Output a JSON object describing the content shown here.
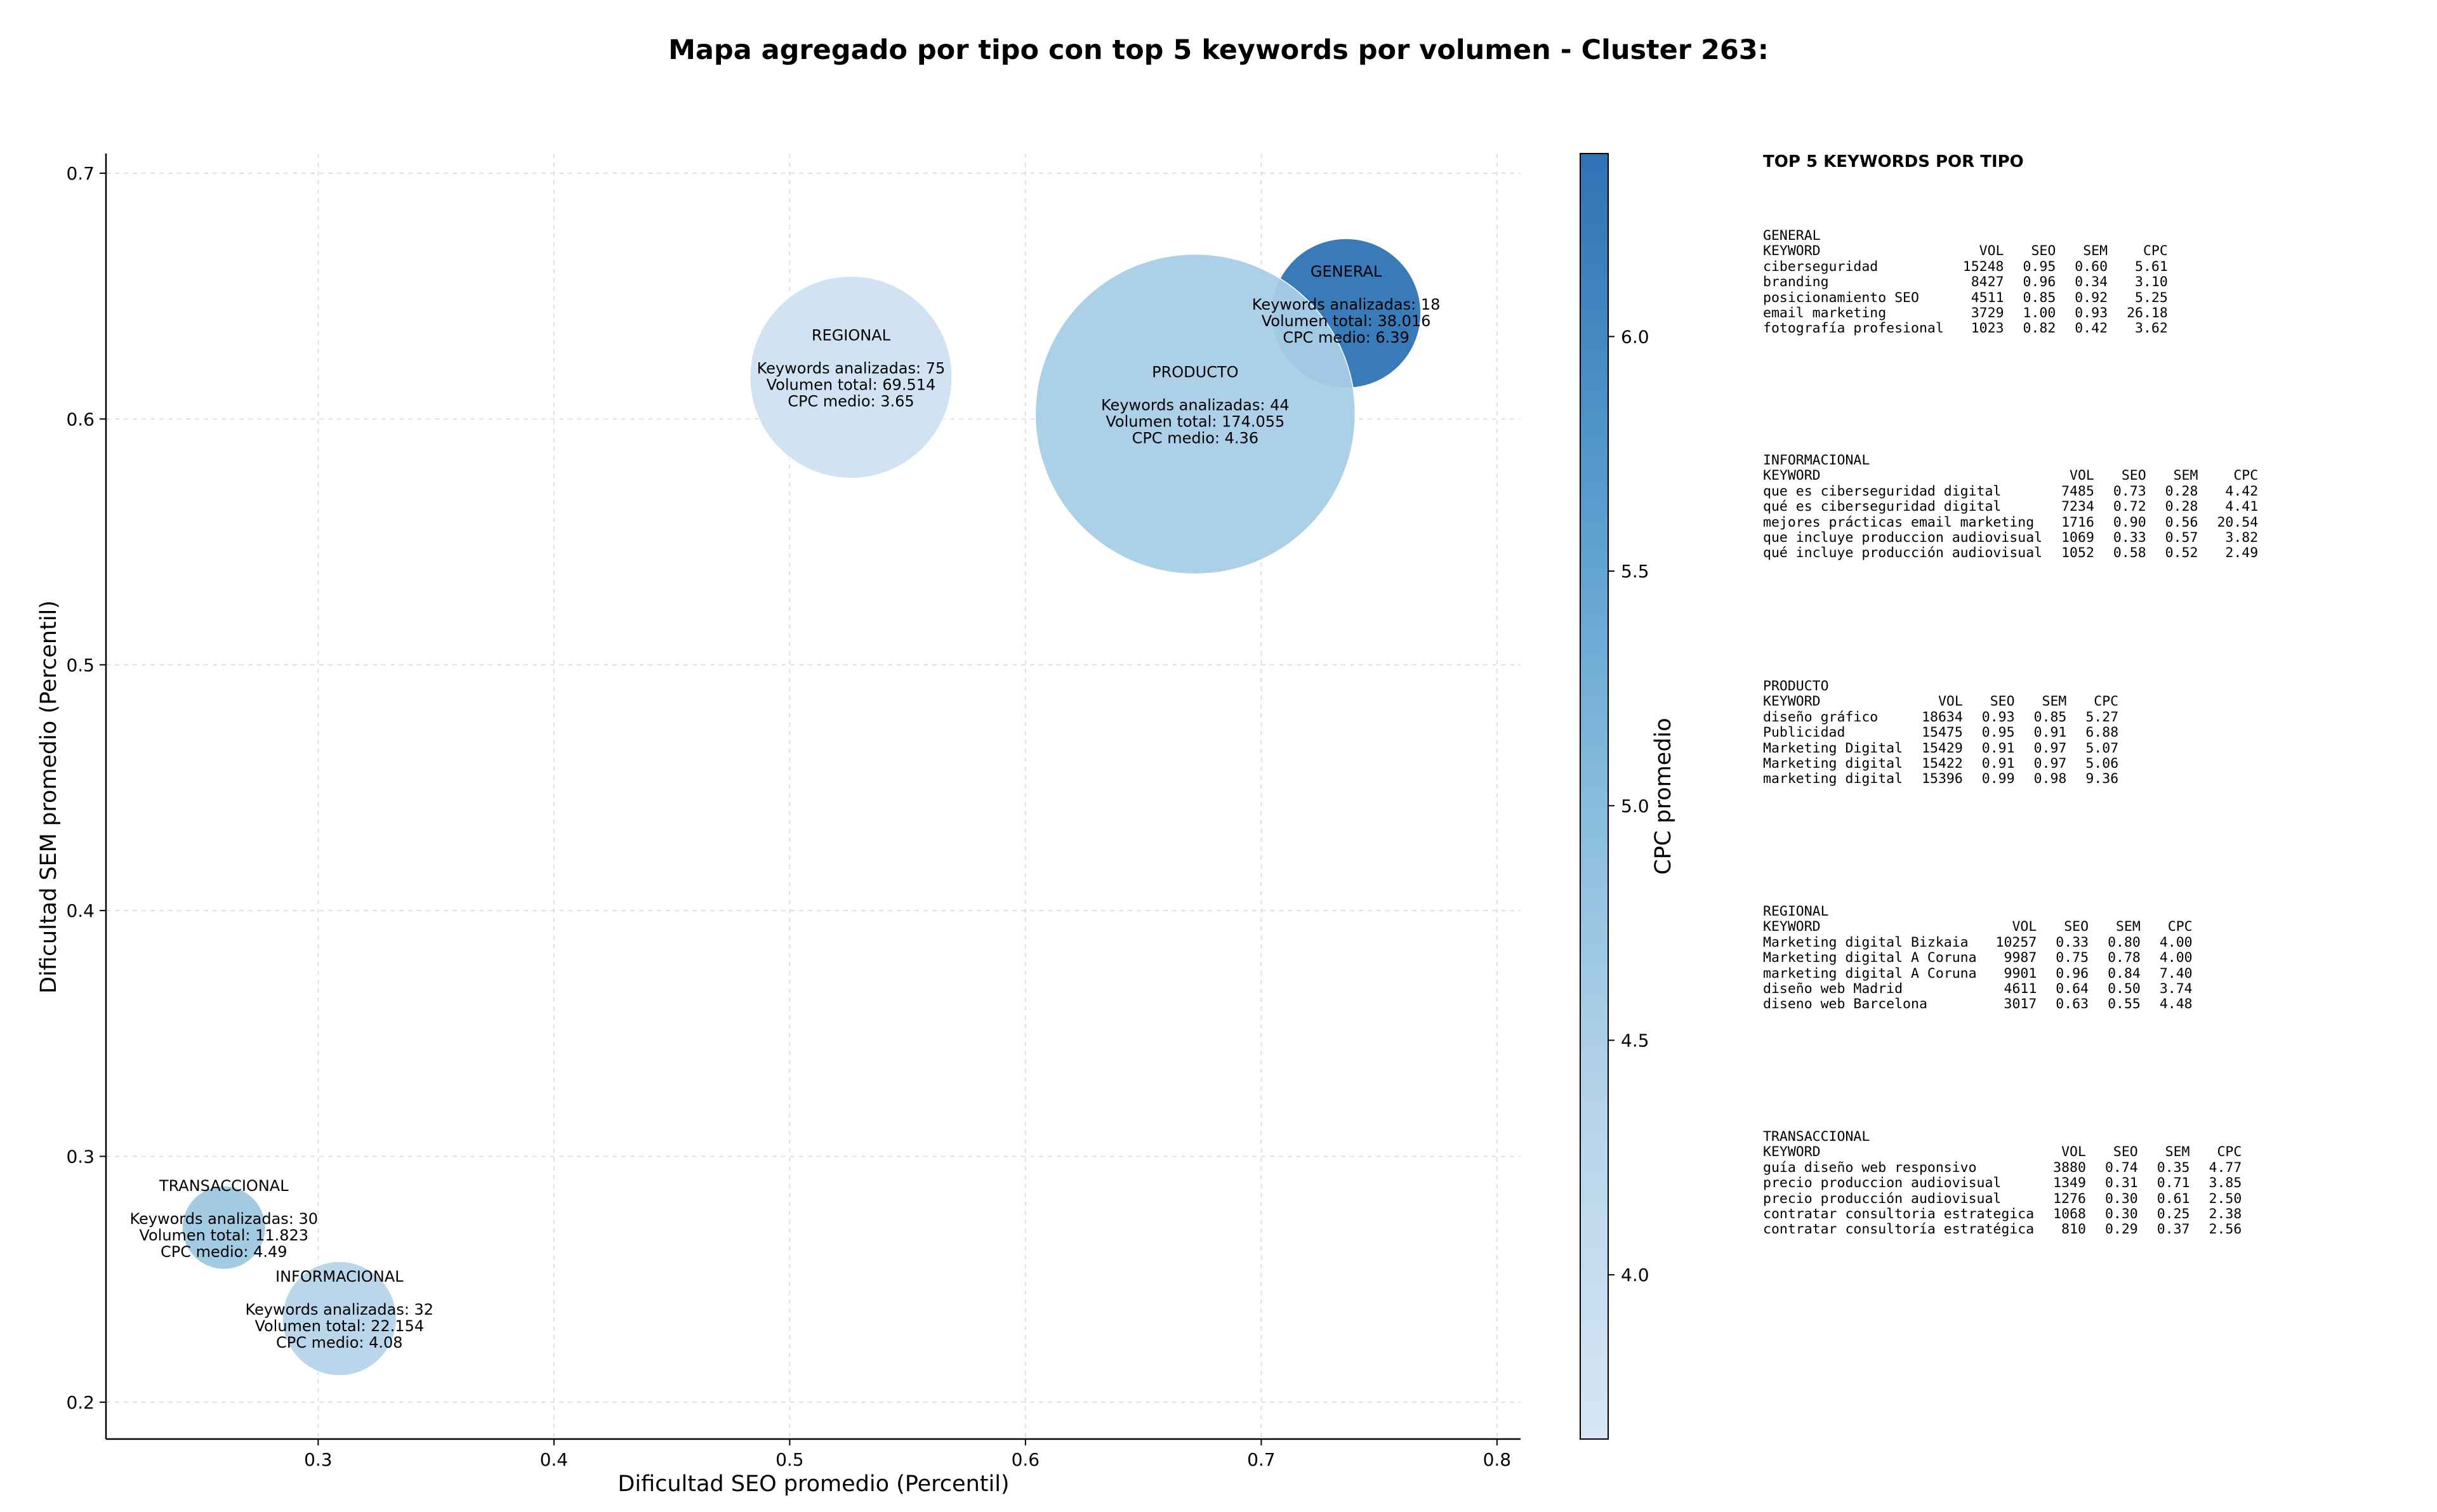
{
  "chart_data": {
    "type": "bubble",
    "title": "Mapa agregado por tipo con top 5 keywords por volumen - Cluster 263:",
    "xlabel": "Dificultad SEO promedio (Percentil)",
    "ylabel": "Dificultad SEM promedio (Percentil)",
    "xlim": [
      0.21,
      0.81
    ],
    "ylim": [
      0.185,
      0.708
    ],
    "xticks": [
      "0.3",
      "0.4",
      "0.5",
      "0.6",
      "0.7",
      "0.8"
    ],
    "yticks": [
      "0.2",
      "0.3",
      "0.4",
      "0.5",
      "0.6",
      "0.7"
    ],
    "grid": true,
    "colorbar": {
      "label": "CPC promedio",
      "min": 3.65,
      "max": 6.39,
      "ticks": [
        "4.0",
        "4.5",
        "5.0",
        "5.5",
        "6.0"
      ]
    },
    "points": [
      {
        "name": "GENERAL",
        "x": 0.736,
        "y": 0.643,
        "keywords": 18,
        "volume": 38016,
        "cpc": 6.39,
        "color": "#2e74b5",
        "lines": [
          "GENERAL",
          "Keywords analizadas: 18",
          "Volumen total: 38.016",
          "CPC medio: 6.39"
        ]
      },
      {
        "name": "REGIONAL",
        "x": 0.526,
        "y": 0.617,
        "keywords": 75,
        "volume": 69514,
        "cpc": 3.65,
        "color": "#cfe1f2",
        "lines": [
          "REGIONAL",
          "Keywords analizadas: 75",
          "Volumen total: 69.514",
          "CPC medio: 3.65"
        ]
      },
      {
        "name": "PRODUCTO",
        "x": 0.672,
        "y": 0.602,
        "keywords": 44,
        "volume": 174055,
        "cpc": 4.36,
        "color": "#a8cde6",
        "lines": [
          "PRODUCTO",
          "Keywords analizadas: 44",
          "Volumen total: 174.055",
          "CPC medio: 4.36"
        ]
      },
      {
        "name": "TRANSACCIONAL",
        "x": 0.26,
        "y": 0.271,
        "keywords": 30,
        "volume": 11823,
        "cpc": 4.49,
        "color": "#9ec8e3",
        "lines": [
          "TRANSACCIONAL",
          "Keywords analizadas: 30",
          "Volumen total: 11.823",
          "CPC medio: 4.49"
        ]
      },
      {
        "name": "INFORMACIONAL",
        "x": 0.309,
        "y": 0.234,
        "keywords": 32,
        "volume": 22154,
        "cpc": 4.08,
        "color": "#b5d4ea",
        "lines": [
          "INFORMACIONAL",
          "Keywords analizadas: 32",
          "Volumen total: 22.154",
          "CPC medio: 4.08"
        ]
      }
    ]
  },
  "top_keywords": {
    "heading": "TOP 5 KEYWORDS POR TIPO",
    "columns": [
      "KEYWORD",
      "VOL",
      "SEO",
      "SEM",
      "CPC"
    ],
    "groups": [
      {
        "type": "GENERAL",
        "rows": [
          [
            "ciberseguridad",
            "15248",
            "0.95",
            "0.60",
            "5.61"
          ],
          [
            "branding",
            "8427",
            "0.96",
            "0.34",
            "3.10"
          ],
          [
            "posicionamiento SEO",
            "4511",
            "0.85",
            "0.92",
            "5.25"
          ],
          [
            "email marketing",
            "3729",
            "1.00",
            "0.93",
            "26.18"
          ],
          [
            "fotografía profesional",
            "1023",
            "0.82",
            "0.42",
            "3.62"
          ]
        ]
      },
      {
        "type": "INFORMACIONAL",
        "rows": [
          [
            "que es ciberseguridad digital",
            "7485",
            "0.73",
            "0.28",
            "4.42"
          ],
          [
            "qué es ciberseguridad digital",
            "7234",
            "0.72",
            "0.28",
            "4.41"
          ],
          [
            "mejores prácticas email marketing",
            "1716",
            "0.90",
            "0.56",
            "20.54"
          ],
          [
            "que incluye produccion audiovisual",
            "1069",
            "0.33",
            "0.57",
            "3.82"
          ],
          [
            "qué incluye producción audiovisual",
            "1052",
            "0.58",
            "0.52",
            "2.49"
          ]
        ]
      },
      {
        "type": "PRODUCTO",
        "rows": [
          [
            "diseño gráfico",
            "18634",
            "0.93",
            "0.85",
            "5.27"
          ],
          [
            "Publicidad",
            "15475",
            "0.95",
            "0.91",
            "6.88"
          ],
          [
            "Marketing Digital",
            "15429",
            "0.91",
            "0.97",
            "5.07"
          ],
          [
            "Marketing digital",
            "15422",
            "0.91",
            "0.97",
            "5.06"
          ],
          [
            "marketing digital",
            "15396",
            "0.99",
            "0.98",
            "9.36"
          ]
        ]
      },
      {
        "type": "REGIONAL",
        "rows": [
          [
            "Marketing digital Bizkaia",
            "10257",
            "0.33",
            "0.80",
            "4.00"
          ],
          [
            "Marketing digital A Coruna",
            "9987",
            "0.75",
            "0.78",
            "4.00"
          ],
          [
            "marketing digital A Coruna",
            "9901",
            "0.96",
            "0.84",
            "7.40"
          ],
          [
            "diseño web Madrid",
            "4611",
            "0.64",
            "0.50",
            "3.74"
          ],
          [
            "diseno web Barcelona",
            "3017",
            "0.63",
            "0.55",
            "4.48"
          ]
        ]
      },
      {
        "type": "TRANSACCIONAL",
        "rows": [
          [
            "guía diseño web responsivo",
            "3880",
            "0.74",
            "0.35",
            "4.77"
          ],
          [
            "precio produccion audiovisual",
            "1349",
            "0.31",
            "0.71",
            "3.85"
          ],
          [
            "precio producción audiovisual",
            "1276",
            "0.30",
            "0.61",
            "2.50"
          ],
          [
            "contratar consultoria estrategica",
            "1068",
            "0.30",
            "0.25",
            "2.38"
          ],
          [
            "contratar consultoría estratégica",
            "810",
            "0.29",
            "0.37",
            "2.56"
          ]
        ]
      }
    ]
  }
}
